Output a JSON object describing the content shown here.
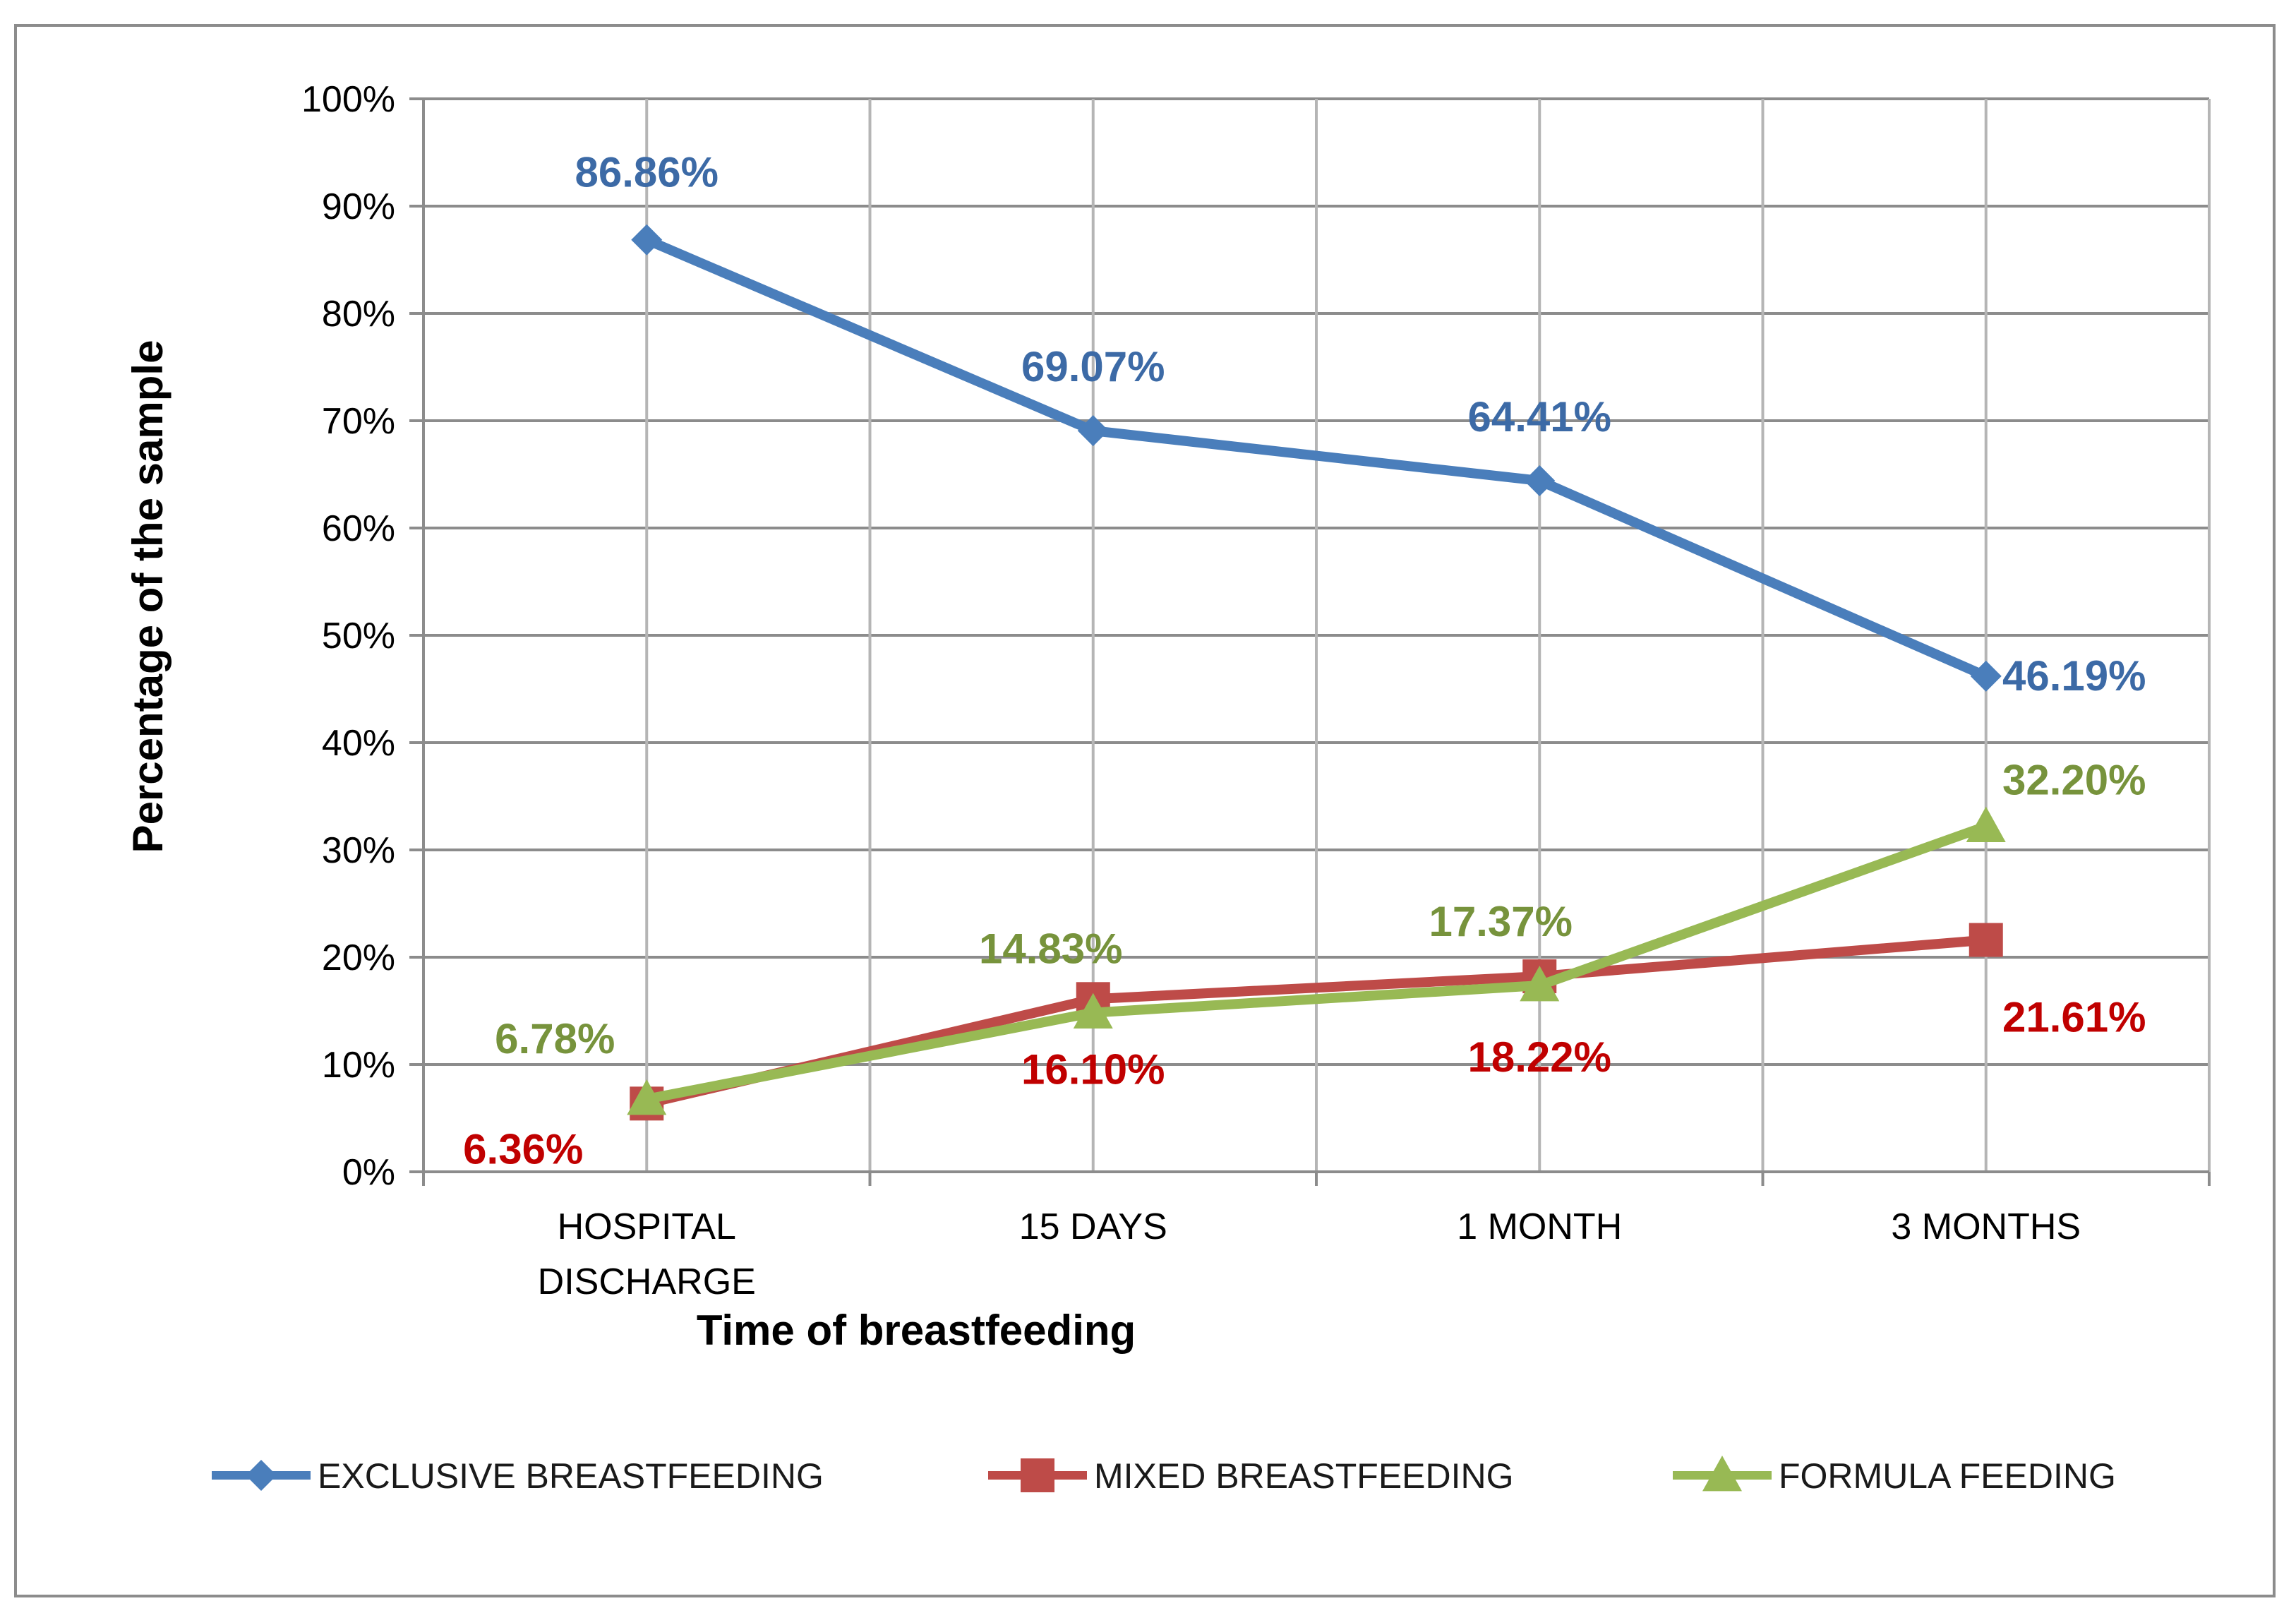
{
  "chart_data": {
    "type": "line",
    "title": "",
    "xlabel": "Time of breastfeeding",
    "ylabel": "Percentage of the sample",
    "categories": [
      [
        "HOSPITAL",
        "DISCHARGE"
      ],
      [
        "15 DAYS"
      ],
      [
        "1 MONTH"
      ],
      [
        "3 MONTHS"
      ]
    ],
    "y_ticks": [
      "0%",
      "10%",
      "20%",
      "30%",
      "40%",
      "50%",
      "60%",
      "70%",
      "80%",
      "90%",
      "100%"
    ],
    "ylim": [
      0,
      100
    ],
    "grid": true,
    "legend_position": "bottom",
    "series": [
      {
        "name": "EXCLUSIVE BREASTFEEDING",
        "color": "#4A7EBB",
        "label_color": "#3C6AA6",
        "marker": "diamond",
        "values": [
          86.86,
          69.07,
          64.41,
          46.19
        ],
        "labels": [
          "86.86%",
          "69.07%",
          "64.41%",
          "46.19%"
        ]
      },
      {
        "name": "MIXED BREASTFEEDING",
        "color": "#BE4B48",
        "label_color": "#C00000",
        "marker": "square",
        "values": [
          6.36,
          16.1,
          18.22,
          21.61
        ],
        "labels": [
          "6.36%",
          "16.10%",
          "18.22%",
          "21.61%"
        ]
      },
      {
        "name": "FORMULA FEEDING",
        "color": "#98B954",
        "label_color": "#77933C",
        "marker": "triangle",
        "values": [
          6.78,
          14.83,
          17.37,
          32.2
        ],
        "labels": [
          "6.78%",
          "14.83%",
          "17.37%",
          "32.20%"
        ]
      }
    ]
  }
}
